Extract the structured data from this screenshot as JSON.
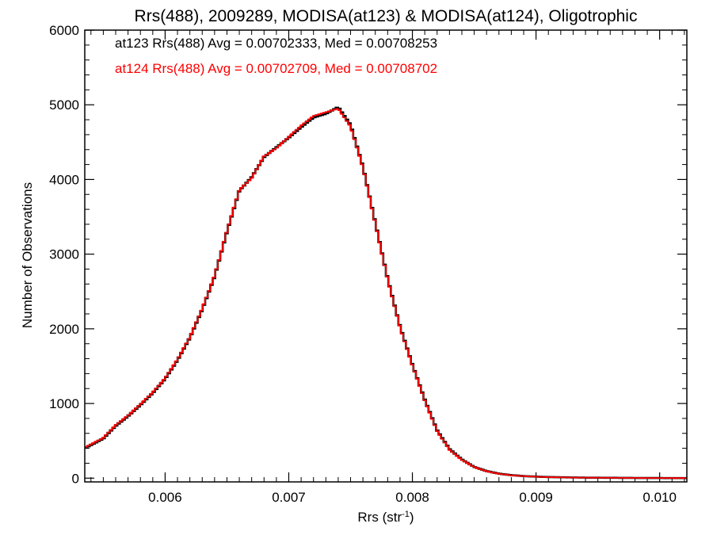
{
  "chart_data": {
    "type": "line",
    "title": "Rrs(488), 2009289, MODISA(at123) & MODISA(at124), Oligotrophic",
    "xlabel": "Rrs (str",
    "xlabel_sup": "-1",
    "xlabel_close": ")",
    "ylabel": "Number of Observations",
    "xlim": [
      0.00535,
      0.01022
    ],
    "ylim": [
      -50,
      6000
    ],
    "x_ticks": [
      {
        "value": 0.006,
        "label": "0.006"
      },
      {
        "value": 0.007,
        "label": "0.007"
      },
      {
        "value": 0.008,
        "label": "0.008"
      },
      {
        "value": 0.009,
        "label": "0.009"
      },
      {
        "value": 0.01,
        "label": "0.010"
      }
    ],
    "y_ticks": [
      {
        "value": 0,
        "label": "0"
      },
      {
        "value": 1000,
        "label": "1000"
      },
      {
        "value": 2000,
        "label": "2000"
      },
      {
        "value": 3000,
        "label": "3000"
      },
      {
        "value": 4000,
        "label": "4000"
      },
      {
        "value": 5000,
        "label": "5000"
      },
      {
        "value": 6000,
        "label": "6000"
      }
    ],
    "annotations": [
      {
        "text": "at123 Rrs(488) Avg = 0.00702333, Med = 0.00708253",
        "color": "#000000"
      },
      {
        "text": "at124 Rrs(488) Avg = 0.00702709, Med = 0.00708702",
        "color": "#ff0000"
      }
    ],
    "series": [
      {
        "color": "#000000",
        "x": [
          0.00535,
          0.0055,
          0.0056,
          0.0057,
          0.0058,
          0.0059,
          0.006,
          0.0061,
          0.0062,
          0.0063,
          0.0064,
          0.0065,
          0.0066,
          0.0067,
          0.0068,
          0.0069,
          0.007,
          0.0071,
          0.0072,
          0.0073,
          0.0074,
          0.0075,
          0.0076,
          0.0077,
          0.0078,
          0.0079,
          0.008,
          0.0081,
          0.0082,
          0.0083,
          0.0084,
          0.0085,
          0.0086,
          0.0087,
          0.0088,
          0.0089,
          0.009,
          0.0091,
          0.0092,
          0.0093,
          0.0094,
          0.0095,
          0.0096,
          0.0097,
          0.0098,
          0.0099,
          0.01,
          0.0101,
          0.01022
        ],
        "y": [
          400,
          530,
          700,
          830,
          980,
          1140,
          1330,
          1580,
          1880,
          2260,
          2700,
          3300,
          3850,
          4030,
          4300,
          4430,
          4560,
          4700,
          4830,
          4880,
          4970,
          4730,
          4170,
          3420,
          2670,
          2030,
          1520,
          1050,
          640,
          390,
          250,
          150,
          95,
          60,
          40,
          28,
          20,
          15,
          12,
          9,
          7,
          6,
          5,
          4,
          3,
          2,
          2,
          1,
          1
        ]
      },
      {
        "color": "#ff0000",
        "x": [
          0.00535,
          0.0055,
          0.0056,
          0.0057,
          0.0058,
          0.0059,
          0.006,
          0.0061,
          0.0062,
          0.0063,
          0.0064,
          0.0065,
          0.0066,
          0.0067,
          0.0068,
          0.0069,
          0.007,
          0.0071,
          0.0072,
          0.0073,
          0.0074,
          0.0075,
          0.0076,
          0.0077,
          0.0078,
          0.0079,
          0.008,
          0.0081,
          0.0082,
          0.0083,
          0.0084,
          0.0085,
          0.0086,
          0.0087,
          0.0088,
          0.0089,
          0.009,
          0.0091,
          0.0092,
          0.0093,
          0.0094,
          0.0095,
          0.0096,
          0.0097,
          0.0098,
          0.0099,
          0.01,
          0.0101,
          0.01022
        ],
        "y": [
          410,
          540,
          710,
          840,
          990,
          1150,
          1340,
          1590,
          1890,
          2270,
          2710,
          3310,
          3860,
          4020,
          4310,
          4420,
          4570,
          4720,
          4850,
          4900,
          4950,
          4710,
          4160,
          3410,
          2660,
          2020,
          1510,
          1040,
          630,
          380,
          245,
          148,
          93,
          58,
          38,
          27,
          19,
          14,
          11,
          8,
          7,
          6,
          5,
          4,
          3,
          2,
          2,
          1,
          1
        ]
      }
    ]
  }
}
